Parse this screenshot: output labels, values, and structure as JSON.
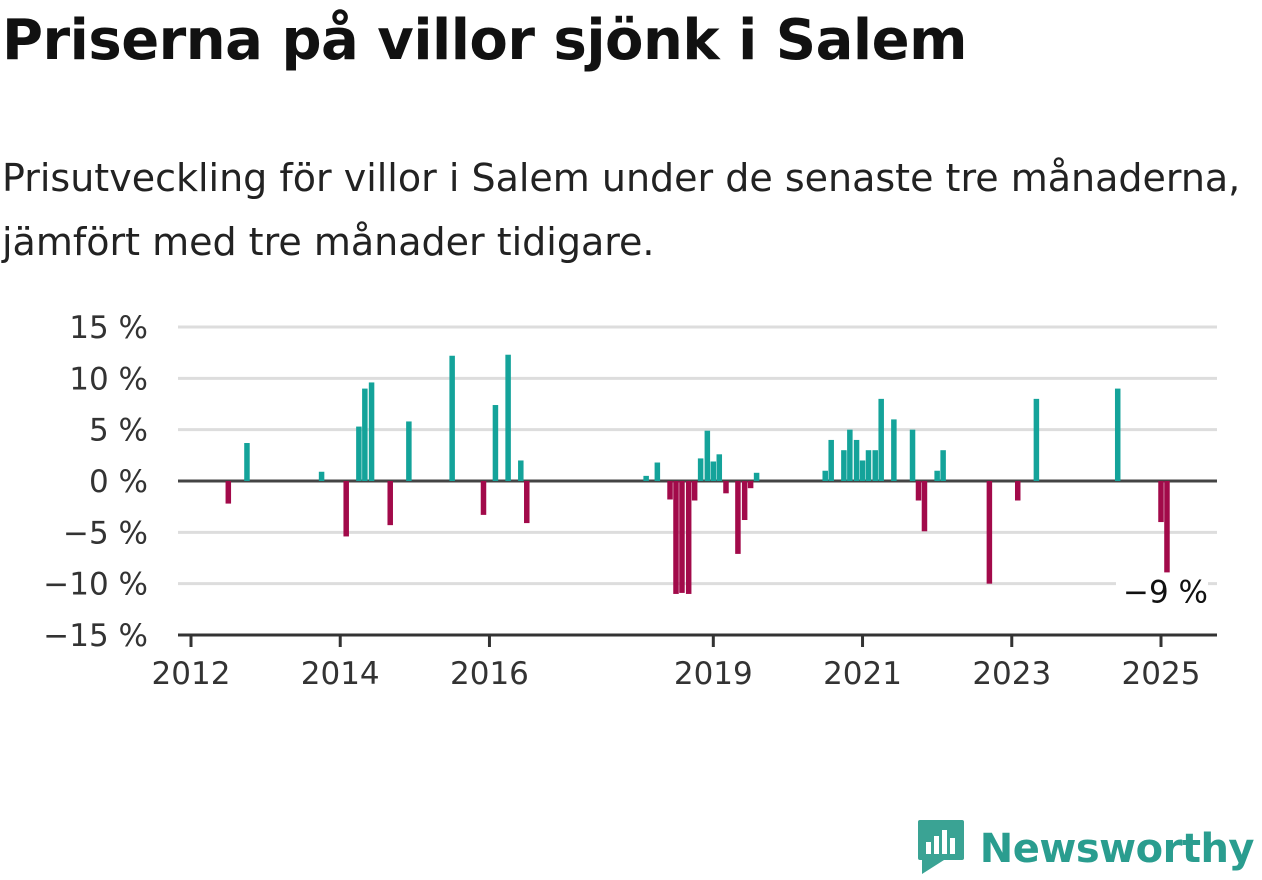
{
  "title": "Priserna på villor sjönk i Salem",
  "subtitle": "Prisutveckling för villor i Salem under de senaste tre månaderna, jämfört med tre månader tidigare.",
  "brand": {
    "name": "Newsworthy",
    "icon": "newsworthy-logo-icon",
    "color": "#3aa394"
  },
  "colors": {
    "positive": "#14a39a",
    "negative": "#a20a4a",
    "grid": "#dddddd",
    "axis": "#333333"
  },
  "chart_data": {
    "type": "bar",
    "title": "Priserna på villor sjönk i Salem",
    "xlabel": "",
    "ylabel": "",
    "ylim": [
      -15,
      15
    ],
    "yticks": [
      15,
      10,
      5,
      0,
      -5,
      -10,
      -15
    ],
    "ytick_labels": [
      "15 %",
      "10 %",
      "5 %",
      "0 %",
      "−5 %",
      "−10 %",
      "−15 %"
    ],
    "xlim": [
      2012,
      2025.4
    ],
    "xticks": [
      2012,
      2014,
      2016,
      2019,
      2021,
      2023,
      2025
    ],
    "xtick_labels": [
      "2012",
      "2014",
      "2016",
      "2019",
      "2021",
      "2023",
      "2025"
    ],
    "grid": true,
    "annotation": {
      "label": "−9 %",
      "x": 2025.0,
      "y": -9
    },
    "points": [
      {
        "x": 2012.5,
        "y": -2.2
      },
      {
        "x": 2012.75,
        "y": 3.7
      },
      {
        "x": 2013.75,
        "y": 0.9
      },
      {
        "x": 2014.08,
        "y": -5.4
      },
      {
        "x": 2014.25,
        "y": 5.3
      },
      {
        "x": 2014.33,
        "y": 9.0
      },
      {
        "x": 2014.42,
        "y": 9.6
      },
      {
        "x": 2014.67,
        "y": -4.3
      },
      {
        "x": 2014.92,
        "y": 5.8
      },
      {
        "x": 2015.5,
        "y": 12.2
      },
      {
        "x": 2015.92,
        "y": -3.3
      },
      {
        "x": 2016.08,
        "y": 7.4
      },
      {
        "x": 2016.25,
        "y": 12.3
      },
      {
        "x": 2016.42,
        "y": 2.0
      },
      {
        "x": 2016.5,
        "y": -4.1
      },
      {
        "x": 2018.1,
        "y": 0.5
      },
      {
        "x": 2018.25,
        "y": 1.8
      },
      {
        "x": 2018.42,
        "y": -1.8
      },
      {
        "x": 2018.5,
        "y": -11.0
      },
      {
        "x": 2018.58,
        "y": -10.9
      },
      {
        "x": 2018.67,
        "y": -11.0
      },
      {
        "x": 2018.75,
        "y": -1.9
      },
      {
        "x": 2018.83,
        "y": 2.2
      },
      {
        "x": 2018.92,
        "y": 4.9
      },
      {
        "x": 2019.0,
        "y": 1.9
      },
      {
        "x": 2019.08,
        "y": 2.6
      },
      {
        "x": 2019.17,
        "y": -1.2
      },
      {
        "x": 2019.33,
        "y": -7.1
      },
      {
        "x": 2019.42,
        "y": -3.8
      },
      {
        "x": 2019.5,
        "y": -0.7
      },
      {
        "x": 2019.58,
        "y": 0.8
      },
      {
        "x": 2020.5,
        "y": 1.0
      },
      {
        "x": 2020.58,
        "y": 4.0
      },
      {
        "x": 2020.75,
        "y": 3.0
      },
      {
        "x": 2020.83,
        "y": 5.0
      },
      {
        "x": 2020.92,
        "y": 4.0
      },
      {
        "x": 2021.0,
        "y": 2.0
      },
      {
        "x": 2021.08,
        "y": 3.0
      },
      {
        "x": 2021.17,
        "y": 3.0
      },
      {
        "x": 2021.25,
        "y": 8.0
      },
      {
        "x": 2021.42,
        "y": 6.0
      },
      {
        "x": 2021.67,
        "y": 5.0
      },
      {
        "x": 2021.75,
        "y": -1.9
      },
      {
        "x": 2021.83,
        "y": -4.9
      },
      {
        "x": 2022.0,
        "y": 1.0
      },
      {
        "x": 2022.08,
        "y": 3.0
      },
      {
        "x": 2022.7,
        "y": -10.0
      },
      {
        "x": 2023.08,
        "y": -1.9
      },
      {
        "x": 2023.33,
        "y": 8.0
      },
      {
        "x": 2024.42,
        "y": 9.0
      },
      {
        "x": 2025.0,
        "y": -4.0
      },
      {
        "x": 2025.08,
        "y": -9.0
      }
    ]
  }
}
